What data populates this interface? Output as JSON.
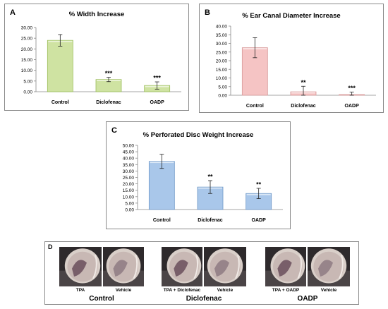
{
  "colors": {
    "green_fill": "#cfe3a2",
    "green_stroke": "#9cbf5c",
    "pink_fill": "#f5c4c4",
    "pink_stroke": "#d89a9a",
    "blue_fill": "#a9c7ea",
    "blue_stroke": "#6f98c8"
  },
  "chart_data": [
    {
      "type": "bar",
      "panel_letter": "A",
      "title": "% Width Increase",
      "categories": [
        "Control",
        "Diclofenac",
        "OADP"
      ],
      "values": [
        24.0,
        5.7,
        2.9
      ],
      "errors": [
        2.7,
        1.0,
        1.7
      ],
      "significance": [
        "",
        "***",
        "***"
      ],
      "ylim": [
        0,
        30
      ],
      "yticks": [
        "0.00",
        "5.00",
        "10.00",
        "15.00",
        "20.00",
        "25.00",
        "30.00"
      ],
      "color": "green",
      "xlabel": "",
      "ylabel": "",
      "grid": false
    },
    {
      "type": "bar",
      "panel_letter": "B",
      "title": "% Ear Canal Diameter Increase",
      "categories": [
        "Control",
        "Diclofenac",
        "OADP"
      ],
      "values": [
        27.5,
        2.0,
        0.4
      ],
      "errors": [
        5.8,
        3.2,
        1.4
      ],
      "significance": [
        "",
        "**",
        "***"
      ],
      "ylim": [
        0,
        40
      ],
      "yticks": [
        "0.00",
        "5.00",
        "10.00",
        "15.00",
        "20.00",
        "25.00",
        "30.00",
        "35.00",
        "40.00"
      ],
      "color": "pink",
      "xlabel": "",
      "ylabel": "",
      "grid": false
    },
    {
      "type": "bar",
      "panel_letter": "C",
      "title": "% Perforated Disc Weight Increase",
      "categories": [
        "Control",
        "Diclofenac",
        "OADP"
      ],
      "values": [
        37.5,
        17.5,
        12.5
      ],
      "errors": [
        5.5,
        5.0,
        4.0
      ],
      "significance": [
        "",
        "**",
        "**"
      ],
      "ylim": [
        0,
        50
      ],
      "yticks": [
        "0.00",
        "5.00",
        "10.00",
        "15.00",
        "20.00",
        "25.00",
        "30.00",
        "35.00",
        "40.00",
        "45.00",
        "50.00"
      ],
      "color": "blue",
      "xlabel": "",
      "ylabel": "",
      "grid": false
    }
  ],
  "panel_d": {
    "letter": "D",
    "groups": [
      {
        "name": "Control",
        "photos": [
          {
            "label": "TPA"
          },
          {
            "label": "Vehicle"
          }
        ]
      },
      {
        "name": "Diclofenac",
        "photos": [
          {
            "label": "TPA + Diclofenac"
          },
          {
            "label": "Vehicle"
          }
        ]
      },
      {
        "name": "OADP",
        "photos": [
          {
            "label": "TPA + OADP"
          },
          {
            "label": "Vehicle"
          }
        ]
      }
    ]
  }
}
